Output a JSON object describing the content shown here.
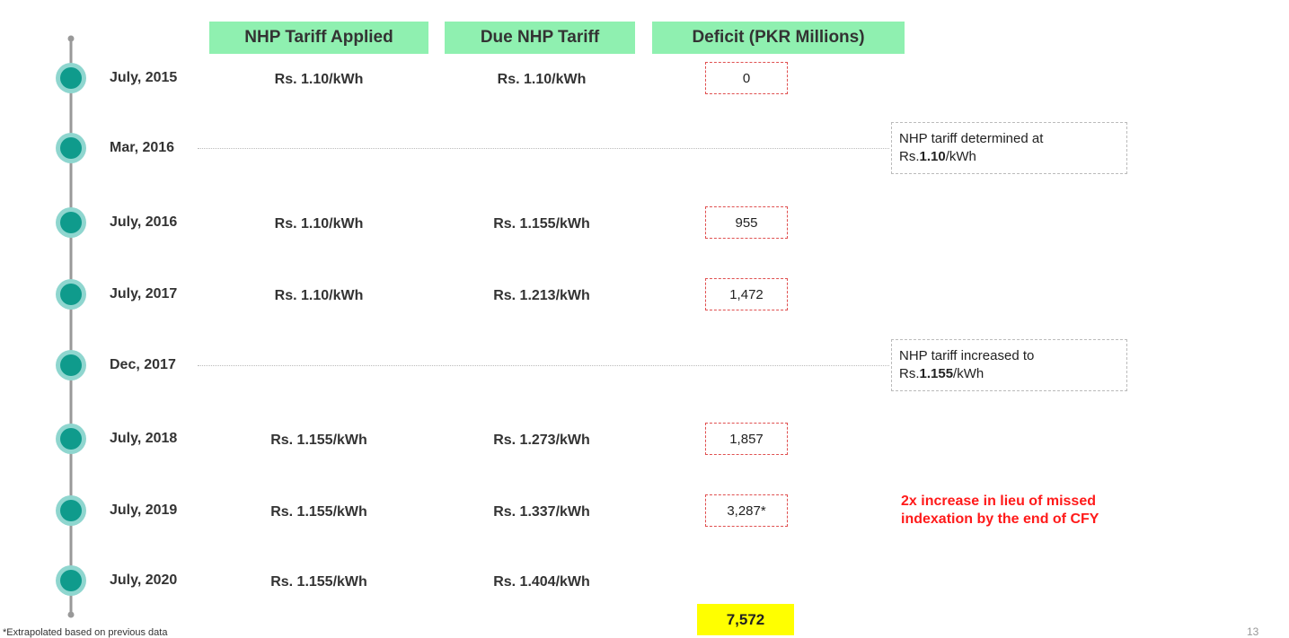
{
  "headers": [
    "NHP Tariff Applied",
    "Due NHP Tariff",
    "Deficit (PKR Millions)"
  ],
  "events": [
    {
      "date": "July, 2015",
      "applied": "Rs. 1.10/kWh",
      "due": "Rs. 1.10/kWh",
      "deficit": "0"
    },
    {
      "date": "Mar, 2016",
      "note": {
        "text": "NHP tariff determined  at",
        "prefix": "Rs.",
        "bold": "1.10",
        "suffix": "/kWh"
      }
    },
    {
      "date": "July, 2016",
      "applied": "Rs. 1.10/kWh",
      "due": "Rs. 1.155/kWh",
      "deficit": "955"
    },
    {
      "date": "July, 2017",
      "applied": "Rs. 1.10/kWh",
      "due": "Rs. 1.213/kWh",
      "deficit": "1,472"
    },
    {
      "date": "Dec, 2017",
      "note": {
        "text": "NHP tariff increased to",
        "prefix": "Rs.",
        "bold": "1.155",
        "suffix": "/kWh"
      }
    },
    {
      "date": "July, 2018",
      "applied": "Rs. 1.155/kWh",
      "due": "Rs. 1.273/kWh",
      "deficit": "1,857"
    },
    {
      "date": "July, 2019",
      "applied": "Rs. 1.155/kWh",
      "due": "Rs. 1.337/kWh",
      "deficit": "3,287*",
      "annotation": [
        "2x increase in lieu of missed",
        "indexation by the end of CFY"
      ]
    },
    {
      "date": "July, 2020",
      "applied": "Rs. 1.155/kWh",
      "due": "Rs. 1.404/kWh"
    }
  ],
  "total": "7,572",
  "footnote": "*Extrapolated  based on previous  data",
  "page_number": "13"
}
